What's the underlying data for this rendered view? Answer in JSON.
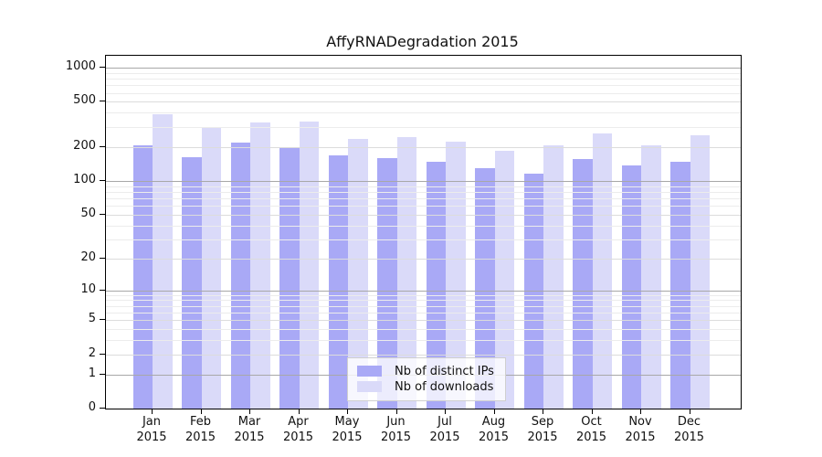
{
  "chart_data": {
    "type": "bar",
    "title": "AffyRNADegradation 2015",
    "categories": [
      "Jan",
      "Feb",
      "Mar",
      "Apr",
      "May",
      "Jun",
      "Jul",
      "Aug",
      "Sep",
      "Oct",
      "Nov",
      "Dec"
    ],
    "year_label": "2015",
    "series": [
      {
        "name": "Nb of distinct IPs",
        "color": "#a9a9f6",
        "values": [
          205,
          162,
          220,
          199,
          168,
          158,
          148,
          129,
          115,
          156,
          136,
          149
        ]
      },
      {
        "name": "Nb of downloads",
        "color": "#dadaf9",
        "values": [
          388,
          300,
          326,
          336,
          234,
          242,
          222,
          185,
          207,
          265,
          206,
          253
        ]
      }
    ],
    "yticks": [
      0,
      1,
      2,
      5,
      10,
      20,
      50,
      100,
      200,
      500,
      1000
    ],
    "scale": "log1p",
    "ylim": [
      0,
      1273
    ],
    "xlabel": "",
    "ylabel": "",
    "grid": "horizontal-log-minor",
    "legend_position": "bottom-center"
  }
}
